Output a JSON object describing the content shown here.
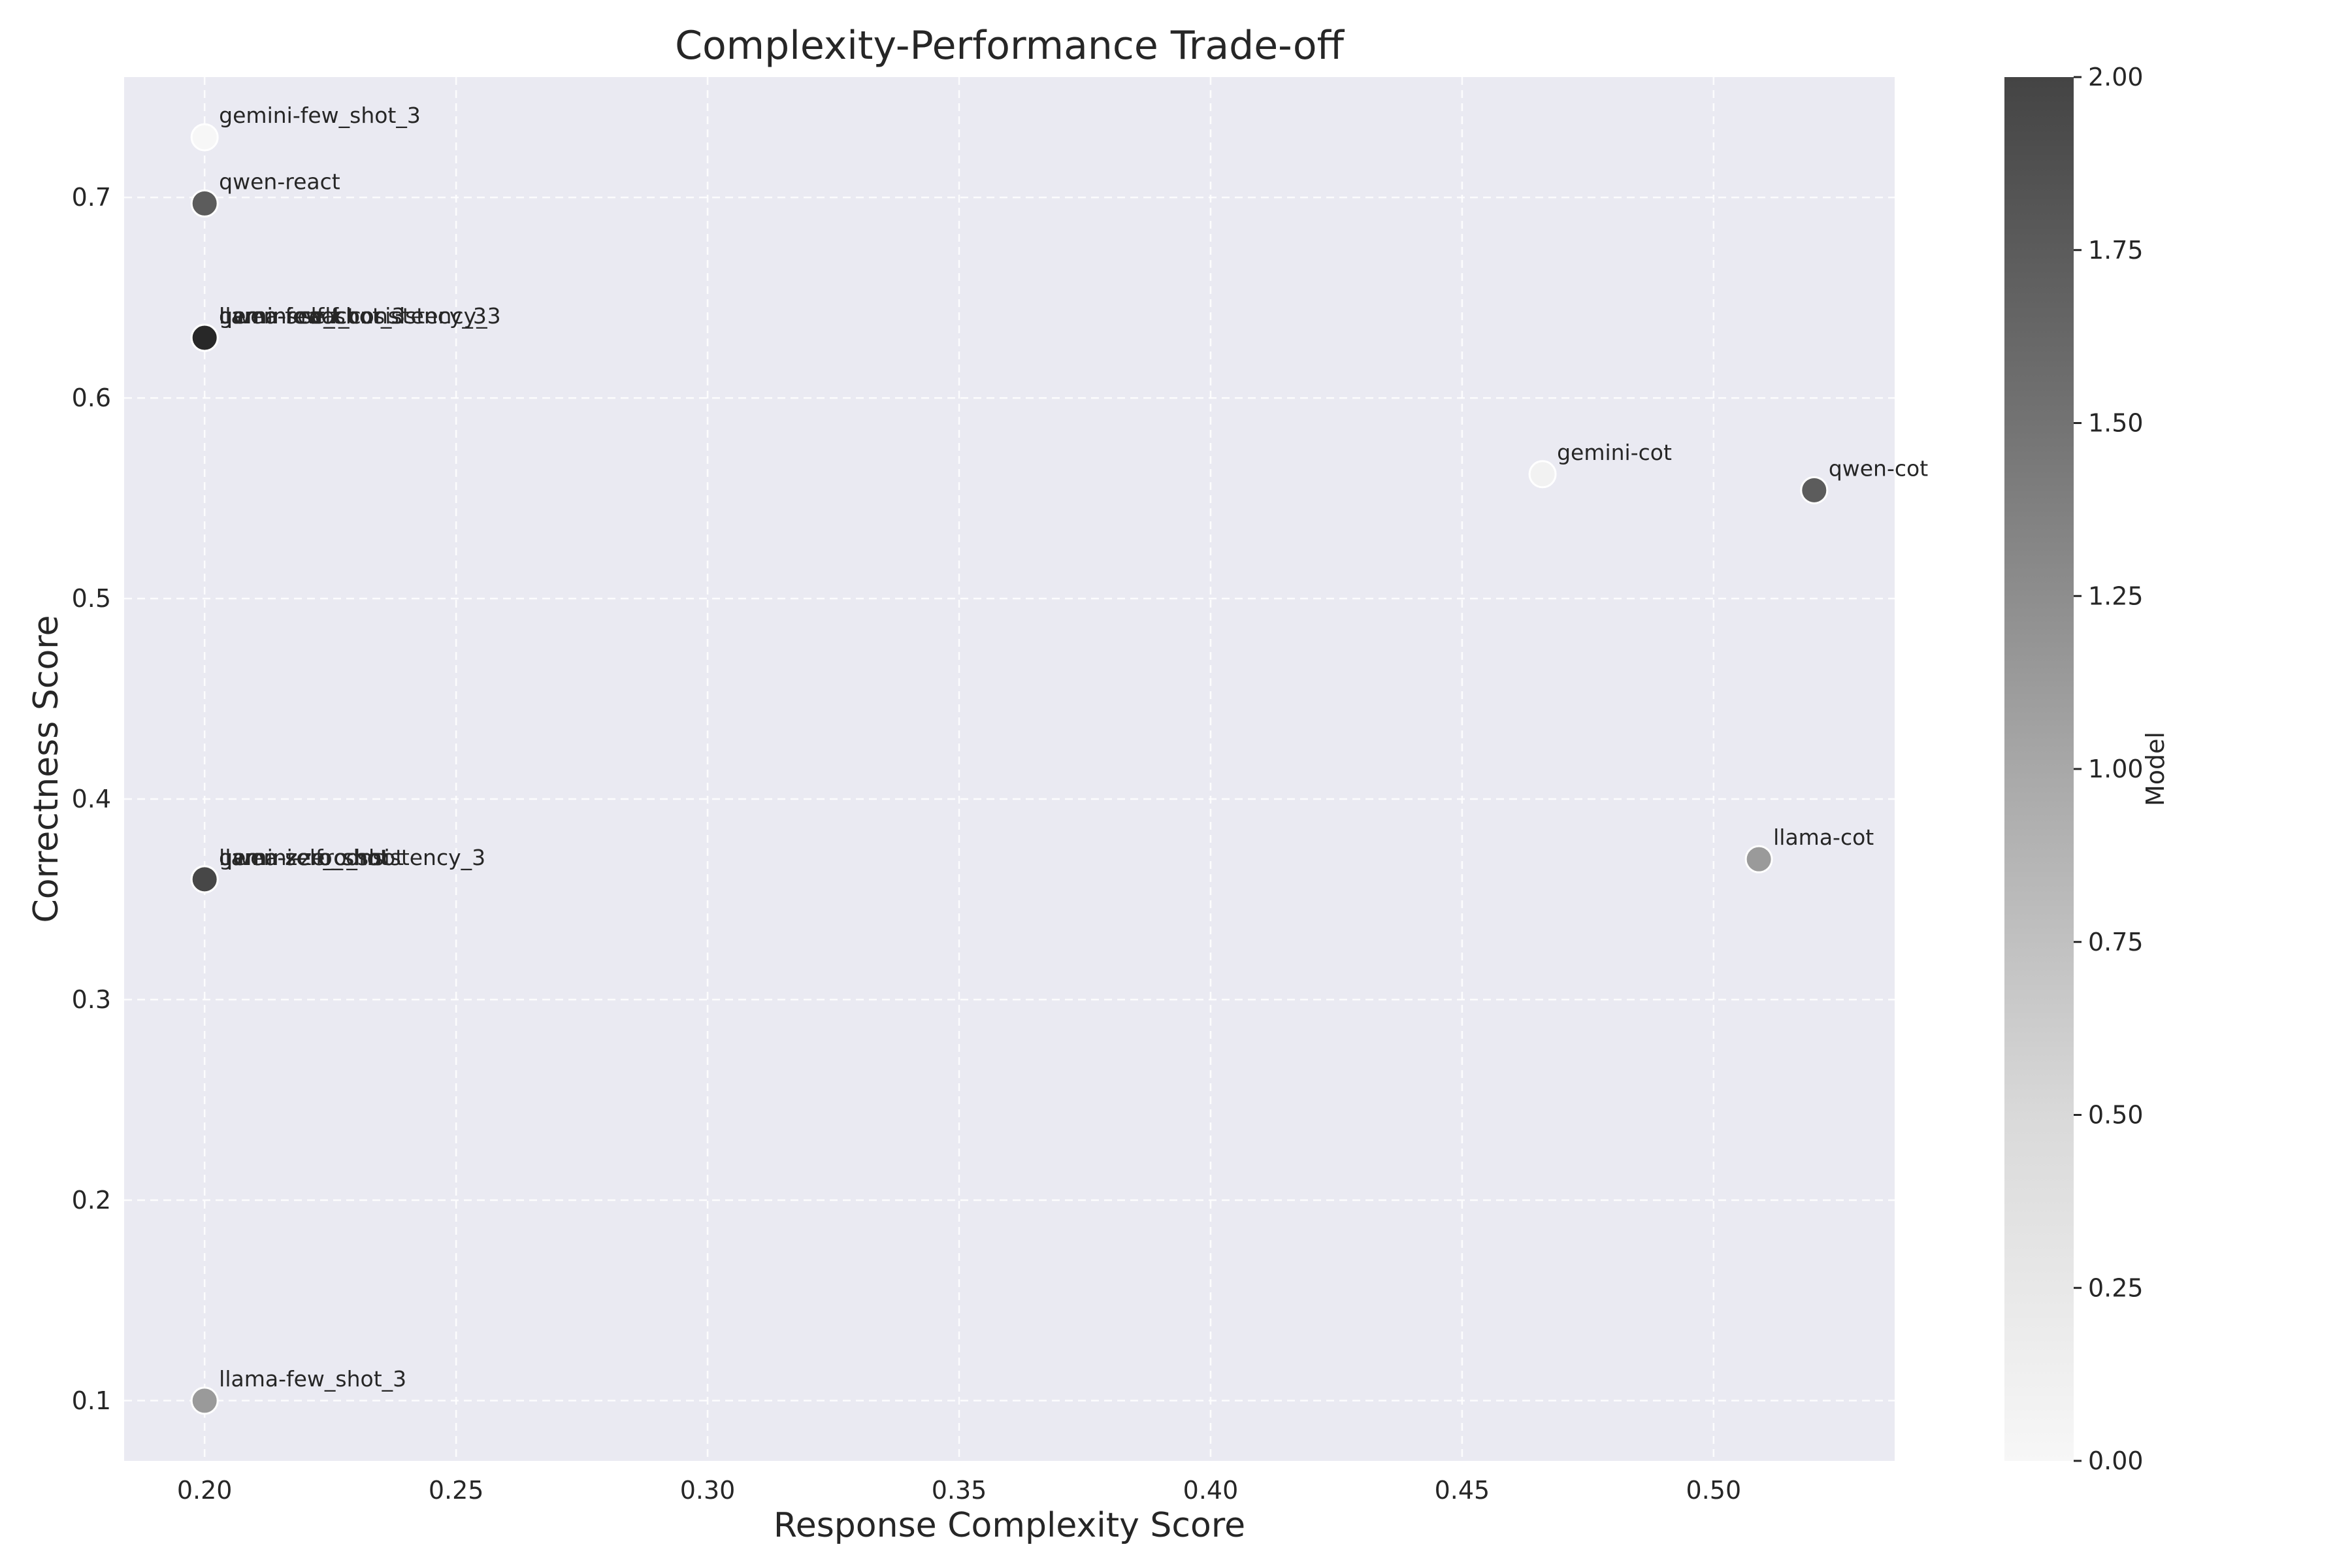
{
  "chart_data": {
    "type": "scatter",
    "title": "Complexity-Performance Trade-off",
    "xlabel": "Response Complexity Score",
    "ylabel": "Correctness Score",
    "xlim": [
      0.184,
      0.536
    ],
    "ylim": [
      0.07,
      0.76
    ],
    "x_ticks": [
      0.2,
      0.25,
      0.3,
      0.35,
      0.4,
      0.45,
      0.5
    ],
    "y_ticks": [
      0.1,
      0.2,
      0.3,
      0.4,
      0.5,
      0.6,
      0.7
    ],
    "grid": true,
    "colorbar": {
      "label": "Model",
      "range": [
        0,
        2
      ],
      "ticks": [
        0.0,
        0.25,
        0.5,
        0.75,
        1.0,
        1.25,
        1.5,
        1.75,
        2.0
      ],
      "colormap": "Greys"
    },
    "points": [
      {
        "label": "gemini-few_shot_3",
        "x": 0.2,
        "y": 0.73,
        "model": 0
      },
      {
        "label": "qwen-react",
        "x": 0.2,
        "y": 0.697,
        "model": 1.5
      },
      {
        "label": "gemini-react",
        "x": 0.2,
        "y": 0.63,
        "model": 2
      },
      {
        "label": "llama-react",
        "x": 0.2,
        "y": 0.63,
        "model": 2
      },
      {
        "label": "gemini-self_consistency_3",
        "x": 0.2,
        "y": 0.63,
        "model": 2
      },
      {
        "label": "qwen-few_shot_3",
        "x": 0.2,
        "y": 0.63,
        "model": 2
      },
      {
        "label": "llama-self_consistency_3",
        "x": 0.2,
        "y": 0.63,
        "model": 2
      },
      {
        "label": "gemini-cot",
        "x": 0.466,
        "y": 0.562,
        "model": 0.05
      },
      {
        "label": "qwen-cot",
        "x": 0.52,
        "y": 0.554,
        "model": 1.5
      },
      {
        "label": "llama-cot",
        "x": 0.509,
        "y": 0.37,
        "model": 0.9
      },
      {
        "label": "llama-zero_shot",
        "x": 0.2,
        "y": 0.36,
        "model": 1.7
      },
      {
        "label": "gemini-zero_shot",
        "x": 0.2,
        "y": 0.36,
        "model": 1.7
      },
      {
        "label": "qwen-zero_shot",
        "x": 0.2,
        "y": 0.36,
        "model": 1.7
      },
      {
        "label": "qwen-self_consistency_3",
        "x": 0.2,
        "y": 0.36,
        "model": 1.7
      },
      {
        "label": "llama-few_shot_3",
        "x": 0.2,
        "y": 0.1,
        "model": 0.9
      }
    ]
  }
}
